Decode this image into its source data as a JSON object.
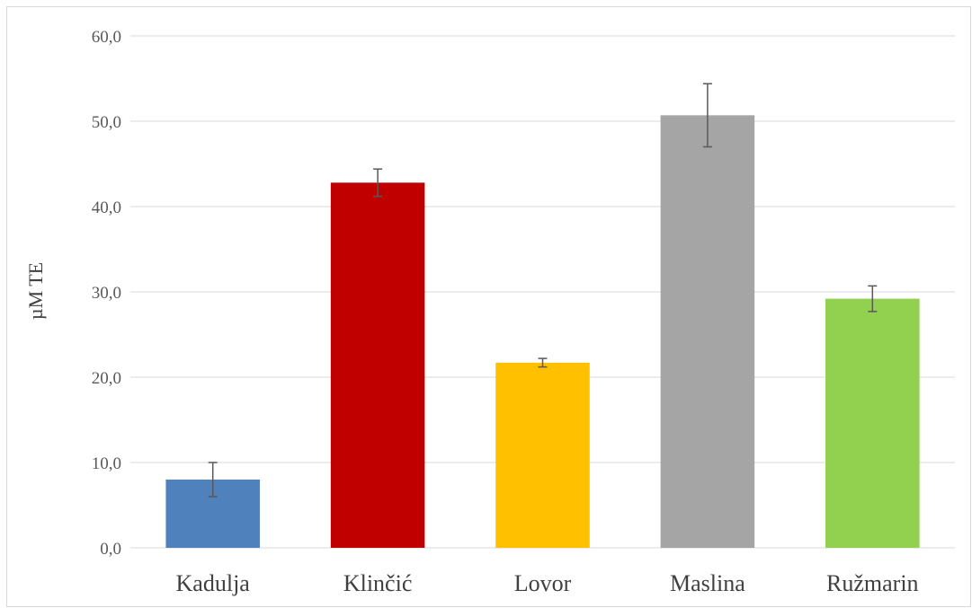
{
  "chart_data": {
    "type": "bar",
    "title": "",
    "xlabel": "",
    "ylabel": "µM TE",
    "ylim": [
      0,
      60
    ],
    "ytick_step": 10,
    "ytick_labels": [
      "0,0",
      "10,0",
      "20,0",
      "30,0",
      "40,0",
      "50,0",
      "60,0"
    ],
    "categories": [
      "Kadulja",
      "Klinčić",
      "Lovor",
      "Maslina",
      "Ružmarin"
    ],
    "values": [
      8.0,
      42.8,
      21.7,
      50.7,
      29.2
    ],
    "errors": [
      2.0,
      1.6,
      0.5,
      3.7,
      1.5
    ],
    "colors": [
      "#4f81bd",
      "#c00000",
      "#ffc000",
      "#a5a5a5",
      "#92d050"
    ],
    "grid": true,
    "legend": "none",
    "error_bar_color": "#595959",
    "gridline_color": "#d9d9d9"
  }
}
